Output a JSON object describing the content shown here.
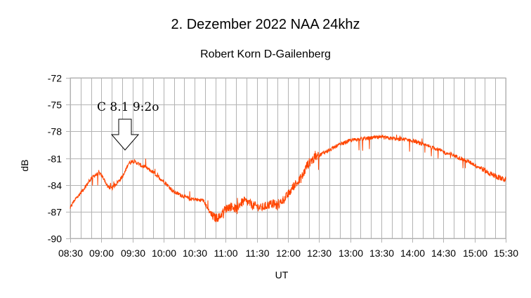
{
  "chart_data": {
    "type": "line",
    "title": "2. Dezember 2022 NAA 24khz",
    "subtitle": "Robert Korn D-Gailenberg",
    "xlabel": "UT",
    "ylabel": "dB",
    "xlim": [
      510,
      930
    ],
    "ylim": [
      -90,
      -72
    ],
    "yticks": [
      -72,
      -75,
      -78,
      -81,
      -84,
      -87,
      -90
    ],
    "xtick_labels": [
      "08:30",
      "09:00",
      "09:30",
      "10:00",
      "10:30",
      "11:00",
      "11:30",
      "12:00",
      "12:30",
      "13:00",
      "13:30",
      "14:00",
      "14:30",
      "15:00",
      "15:30"
    ],
    "xtick_values": [
      510,
      540,
      570,
      600,
      630,
      660,
      690,
      720,
      750,
      780,
      810,
      840,
      870,
      900,
      930
    ],
    "minor_grid_step_minutes": 10,
    "grid": true,
    "series": [
      {
        "name": "NAA 24 kHz",
        "color": "#ff4500",
        "x": [
          510,
          514,
          518,
          522,
          526,
          530,
          534,
          538,
          542,
          546,
          550,
          554,
          558,
          562,
          566,
          570,
          574,
          578,
          582,
          586,
          590,
          594,
          598,
          602,
          606,
          610,
          614,
          618,
          622,
          626,
          630,
          634,
          638,
          642,
          646,
          650,
          654,
          658,
          662,
          666,
          670,
          674,
          678,
          682,
          686,
          690,
          694,
          698,
          702,
          706,
          710,
          714,
          718,
          722,
          726,
          730,
          734,
          738,
          742,
          746,
          750,
          754,
          758,
          762,
          766,
          770,
          774,
          778,
          782,
          786,
          790,
          794,
          798,
          802,
          806,
          810,
          814,
          818,
          822,
          826,
          830,
          834,
          838,
          842,
          846,
          850,
          854,
          858,
          862,
          866,
          870,
          874,
          878,
          882,
          886,
          890,
          894,
          898,
          902,
          906,
          910,
          914,
          918,
          922,
          926,
          930
        ],
        "y": [
          -86.6,
          -85.7,
          -85.2,
          -84.6,
          -84.0,
          -83.3,
          -82.9,
          -82.7,
          -83.2,
          -84.2,
          -84.4,
          -83.9,
          -83.4,
          -82.8,
          -81.6,
          -81.3,
          -81.5,
          -81.8,
          -82.0,
          -82.3,
          -82.6,
          -83.0,
          -83.4,
          -83.8,
          -84.3,
          -84.8,
          -85.0,
          -85.2,
          -85.4,
          -85.6,
          -85.6,
          -85.7,
          -85.7,
          -86.5,
          -87.4,
          -87.7,
          -87.6,
          -86.9,
          -86.5,
          -86.4,
          -86.7,
          -86.1,
          -85.8,
          -86.0,
          -86.3,
          -86.4,
          -86.6,
          -86.4,
          -86.2,
          -86.1,
          -86.4,
          -85.8,
          -85.4,
          -84.8,
          -84.0,
          -83.7,
          -83.0,
          -81.9,
          -81.3,
          -81.0,
          -80.7,
          -80.4,
          -80.2,
          -80.0,
          -79.7,
          -79.5,
          -79.3,
          -79.1,
          -79.0,
          -78.9,
          -78.9,
          -78.8,
          -78.8,
          -78.7,
          -78.7,
          -78.7,
          -78.7,
          -78.8,
          -78.8,
          -78.9,
          -78.9,
          -78.9,
          -79.0,
          -79.1,
          -79.3,
          -79.5,
          -79.6,
          -79.8,
          -79.9,
          -80.1,
          -80.3,
          -80.5,
          -80.6,
          -80.8,
          -81.0,
          -81.2,
          -81.4,
          -81.6,
          -81.9,
          -82.1,
          -82.4,
          -82.7,
          -82.9,
          -83.1,
          -83.3,
          -83.4
        ]
      }
    ],
    "annotations": [
      {
        "text": "C 8.1  9:2o",
        "target_time_minutes": 560,
        "shape": "down-arrow"
      }
    ]
  }
}
